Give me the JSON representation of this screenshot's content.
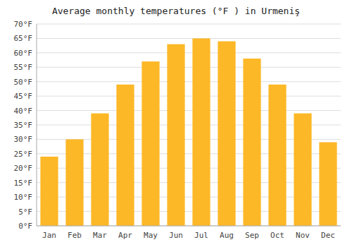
{
  "chart_data": {
    "type": "bar",
    "title": "Average monthly temperatures (°F ) in Urmeniş",
    "categories": [
      "Jan",
      "Feb",
      "Mar",
      "Apr",
      "May",
      "Jun",
      "Jul",
      "Aug",
      "Sep",
      "Oct",
      "Nov",
      "Dec"
    ],
    "values": [
      24,
      30,
      39,
      49,
      57,
      63,
      65,
      64,
      58,
      49,
      39,
      29
    ],
    "color": "#FDB827",
    "ylim": [
      0,
      70
    ],
    "yticks": [
      {
        "value": 0,
        "label": "0°F"
      },
      {
        "value": 5,
        "label": "5°F"
      },
      {
        "value": 10,
        "label": "10°F"
      },
      {
        "value": 15,
        "label": "15°F"
      },
      {
        "value": 20,
        "label": "20°F"
      },
      {
        "value": 25,
        "label": "25°F"
      },
      {
        "value": 30,
        "label": "30°F"
      },
      {
        "value": 35,
        "label": "35°F"
      },
      {
        "value": 40,
        "label": "40°F"
      },
      {
        "value": 45,
        "label": "45°F"
      },
      {
        "value": 50,
        "label": "50°F"
      },
      {
        "value": 55,
        "label": "55°F"
      },
      {
        "value": 60,
        "label": "60°F"
      },
      {
        "value": 65,
        "label": "65°F"
      },
      {
        "value": 70,
        "label": "70°F"
      }
    ],
    "grid": true
  }
}
